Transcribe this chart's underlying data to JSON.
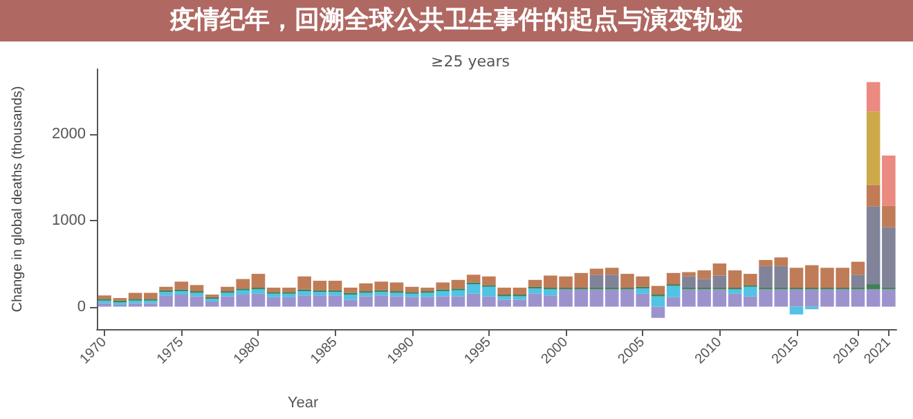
{
  "chart_data": {
    "type": "bar",
    "title": "疫情纪年，回溯全球公共卫生事件的起点与演变轨迹",
    "subtitle": "≥25 years",
    "xlabel": "Year",
    "ylabel": "Change in global deaths (thousands)",
    "categories": [
      "1970",
      null,
      null,
      null,
      null,
      "1975",
      null,
      null,
      null,
      null,
      "1980",
      null,
      null,
      null,
      null,
      "1985",
      null,
      null,
      null,
      null,
      "1990",
      null,
      null,
      null,
      null,
      "1995",
      null,
      null,
      null,
      null,
      "2000",
      null,
      null,
      null,
      null,
      "2005",
      null,
      null,
      null,
      null,
      "2010",
      null,
      null,
      null,
      null,
      "2015",
      null,
      null,
      null,
      "2019",
      null,
      "2021"
    ],
    "stacked": true,
    "ylim": [
      -260,
      2750
    ],
    "yticks": [
      0,
      1000,
      2000
    ],
    "grid": false,
    "series": [
      {
        "color": "#8b80c4",
        "values": [
          40,
          20,
          40,
          40,
          130,
          140,
          120,
          60,
          120,
          140,
          150,
          110,
          110,
          130,
          130,
          130,
          80,
          120,
          130,
          120,
          110,
          110,
          120,
          120,
          150,
          120,
          80,
          80,
          150,
          130,
          200,
          200,
          200,
          200,
          200,
          150,
          -130,
          110,
          200,
          200,
          200,
          150,
          120,
          200,
          200,
          200,
          200,
          200,
          200,
          200,
          200,
          200
        ]
      },
      {
        "color": "#33b8e0",
        "values": [
          30,
          30,
          30,
          30,
          40,
          40,
          40,
          30,
          40,
          50,
          50,
          40,
          40,
          50,
          40,
          40,
          60,
          40,
          40,
          40,
          40,
          50,
          60,
          70,
          110,
          110,
          40,
          40,
          60,
          70,
          0,
          0,
          0,
          0,
          0,
          60,
          120,
          130,
          0,
          0,
          0,
          50,
          110,
          0,
          0,
          -90,
          -30,
          0,
          0,
          0,
          0,
          0
        ]
      },
      {
        "color": "#1f6b3a",
        "values": [
          20,
          20,
          20,
          20,
          20,
          20,
          20,
          20,
          20,
          20,
          20,
          20,
          20,
          20,
          20,
          20,
          20,
          20,
          20,
          20,
          20,
          20,
          20,
          20,
          20,
          20,
          20,
          20,
          20,
          20,
          20,
          20,
          20,
          20,
          20,
          20,
          20,
          20,
          20,
          20,
          20,
          20,
          20,
          20,
          20,
          20,
          20,
          20,
          20,
          20,
          60,
          20
        ]
      },
      {
        "color": "#6b6f86",
        "values": [
          0,
          0,
          0,
          0,
          0,
          0,
          0,
          0,
          0,
          0,
          0,
          0,
          0,
          0,
          0,
          0,
          0,
          0,
          0,
          0,
          0,
          0,
          0,
          0,
          0,
          0,
          0,
          0,
          0,
          0,
          0,
          0,
          150,
          150,
          0,
          0,
          0,
          0,
          130,
          100,
          140,
          0,
          0,
          250,
          250,
          0,
          0,
          0,
          0,
          150,
          900,
          700
        ]
      },
      {
        "color": "#b5653a",
        "values": [
          40,
          30,
          70,
          70,
          40,
          90,
          70,
          30,
          50,
          110,
          160,
          50,
          50,
          150,
          110,
          110,
          60,
          90,
          100,
          100,
          60,
          40,
          80,
          100,
          90,
          100,
          80,
          80,
          80,
          140,
          130,
          170,
          70,
          80,
          160,
          120,
          100,
          130,
          50,
          100,
          140,
          200,
          130,
          70,
          100,
          230,
          260,
          230,
          230,
          150,
          250,
          250
        ]
      },
      {
        "color": "#c49a2a",
        "values": [
          0,
          0,
          0,
          0,
          0,
          0,
          0,
          0,
          0,
          0,
          0,
          0,
          0,
          0,
          0,
          0,
          0,
          0,
          0,
          0,
          0,
          0,
          0,
          0,
          0,
          0,
          0,
          0,
          0,
          0,
          0,
          0,
          0,
          0,
          0,
          0,
          0,
          0,
          0,
          0,
          0,
          0,
          0,
          0,
          0,
          0,
          0,
          0,
          0,
          0,
          850,
          0
        ]
      },
      {
        "color": "#e8756a",
        "values": [
          0,
          0,
          0,
          0,
          0,
          0,
          0,
          0,
          0,
          0,
          0,
          0,
          0,
          0,
          0,
          0,
          0,
          0,
          0,
          0,
          0,
          0,
          0,
          0,
          0,
          0,
          0,
          0,
          0,
          0,
          0,
          0,
          0,
          0,
          0,
          0,
          0,
          0,
          0,
          0,
          0,
          0,
          0,
          0,
          0,
          0,
          0,
          0,
          0,
          0,
          340,
          580
        ]
      }
    ]
  }
}
